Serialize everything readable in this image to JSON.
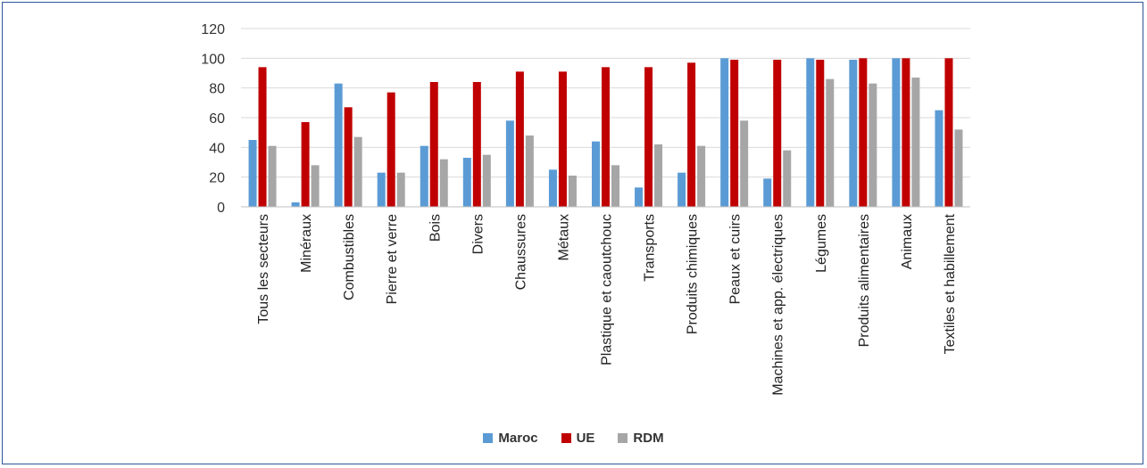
{
  "chart_data": {
    "type": "bar",
    "categories": [
      "Tous les secteurs",
      "Minéraux",
      "Combustibles",
      "Pierre et verre",
      "Bois",
      "Divers",
      "Chaussures",
      "Métaux",
      "Plastique et caoutchouc",
      "Transports",
      "Produits chimiques",
      "Peaux et cuirs",
      "Machines et app. électriques",
      "Légumes",
      "Produits alimentaires",
      "Animaux",
      "Textiles et habillement"
    ],
    "series": [
      {
        "name": "Maroc",
        "color": "#5B9BD5",
        "values": [
          45,
          3,
          83,
          23,
          41,
          33,
          58,
          25,
          44,
          13,
          23,
          100,
          19,
          100,
          99,
          100,
          65
        ]
      },
      {
        "name": "UE",
        "color": "#C00000",
        "values": [
          94,
          57,
          67,
          77,
          84,
          84,
          91,
          91,
          94,
          94,
          97,
          99,
          99,
          99,
          100,
          100,
          100
        ]
      },
      {
        "name": "RDM",
        "color": "#A6A6A6",
        "values": [
          41,
          28,
          47,
          23,
          32,
          35,
          48,
          21,
          28,
          42,
          41,
          58,
          38,
          86,
          83,
          87,
          52
        ]
      }
    ],
    "yticks": [
      "0",
      "20",
      "40",
      "60",
      "80",
      "100",
      "120"
    ],
    "ylim": [
      0,
      120
    ],
    "grid": true,
    "legend_position": "bottom"
  }
}
